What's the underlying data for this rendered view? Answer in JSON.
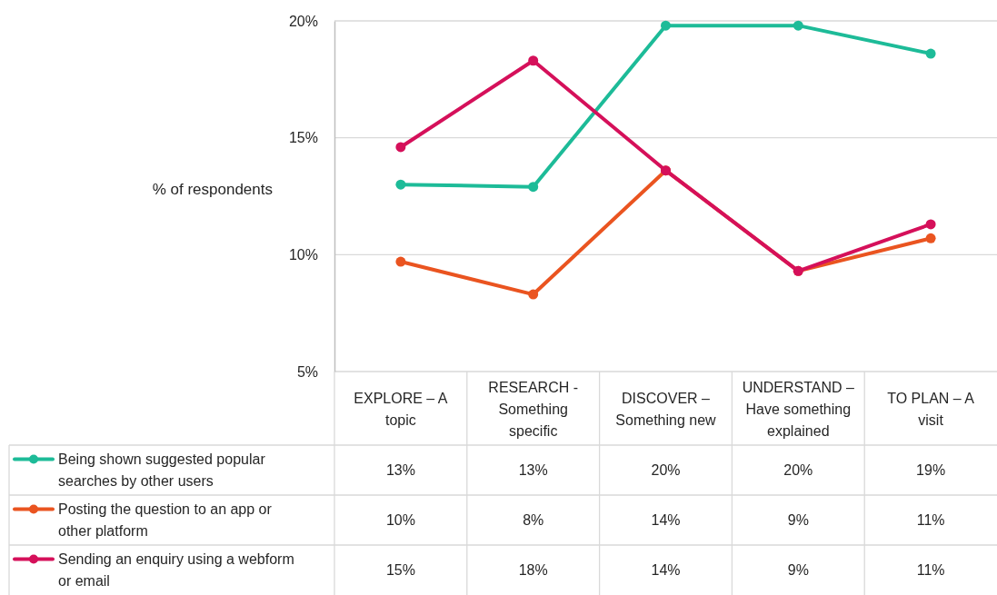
{
  "chart_data": {
    "type": "line",
    "ylabel": "% of respondents",
    "categories": [
      "EXPLORE – A topic",
      "RESEARCH - Something specific",
      "DISCOVER – Something new",
      "UNDERSTAND – Have something explained",
      "TO PLAN – A visit"
    ],
    "series": [
      {
        "name": "Being shown suggested popular searches by other users",
        "color": "#1dbb98",
        "values": [
          13.0,
          12.9,
          19.8,
          19.8,
          18.6
        ],
        "value_labels": [
          "13%",
          "13%",
          "20%",
          "20%",
          "19%"
        ]
      },
      {
        "name": "Posting the question to an app or other platform",
        "color": "#ea5420",
        "values": [
          9.7,
          8.3,
          13.6,
          9.3,
          10.7
        ],
        "value_labels": [
          "10%",
          "8%",
          "14%",
          "9%",
          "11%"
        ]
      },
      {
        "name": "Sending an enquiry using a webform or email",
        "color": "#d5105a",
        "values": [
          14.6,
          18.3,
          13.6,
          9.3,
          11.3
        ],
        "value_labels": [
          "15%",
          "18%",
          "14%",
          "9%",
          "11%"
        ]
      }
    ],
    "ylim": [
      5,
      20
    ],
    "yticks": [
      {
        "value": 5,
        "label": "5%"
      },
      {
        "value": 10,
        "label": "10%"
      },
      {
        "value": 15,
        "label": "15%"
      },
      {
        "value": 20,
        "label": "20%"
      }
    ],
    "grid": "y",
    "legend": "bottom",
    "marker": "circle",
    "line_style": "solid"
  }
}
